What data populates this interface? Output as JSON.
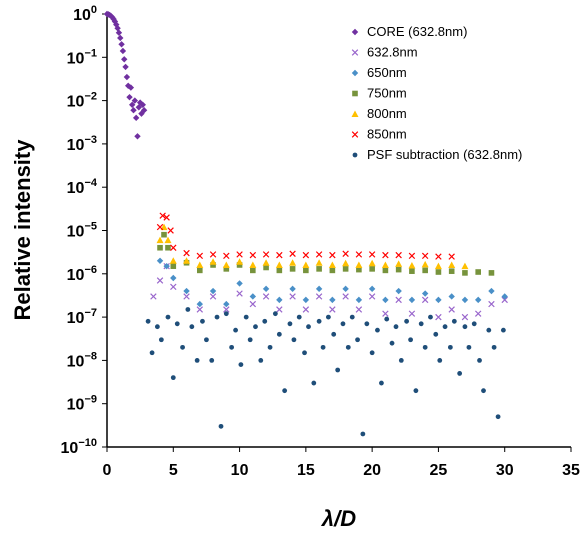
{
  "chart_data": {
    "type": "scatter",
    "title": "",
    "xlabel": "λ/D",
    "ylabel": "Relative intensity",
    "xlim": [
      0,
      35
    ],
    "ylim_log10": [
      -10,
      0
    ],
    "y_scale": "log",
    "grid": false,
    "legend_position": "top-right",
    "x_ticks": [
      "0",
      "5",
      "10",
      "15",
      "20",
      "25",
      "30",
      "35"
    ],
    "y_ticks": [
      "10^0",
      "10^-1",
      "10^-2",
      "10^-3",
      "10^-4",
      "10^-5",
      "10^-6",
      "10^-7",
      "10^-8",
      "10^-9",
      "10^-10"
    ],
    "series": [
      {
        "name": "CORE (632.8nm)",
        "color": "#7030A0",
        "marker": "diamond",
        "x": [
          0.0,
          0.1,
          0.2,
          0.3,
          0.4,
          0.5,
          0.6,
          0.7,
          0.8,
          0.9,
          1.0,
          1.1,
          1.2,
          1.3,
          1.4,
          1.5,
          1.6,
          1.7,
          1.8,
          1.9,
          2.0,
          2.1,
          2.2,
          2.3,
          2.4,
          2.5,
          2.6,
          2.7,
          2.8
        ],
        "y": [
          1.0,
          0.98,
          0.95,
          0.9,
          0.84,
          0.76,
          0.67,
          0.57,
          0.47,
          0.37,
          0.28,
          0.2,
          0.14,
          0.09,
          0.06,
          0.035,
          0.022,
          0.012,
          0.02,
          0.008,
          0.006,
          0.01,
          0.004,
          0.0015,
          0.007,
          0.009,
          0.005,
          0.008,
          0.006
        ]
      },
      {
        "name": "632.8nm",
        "color": "#9966CC",
        "marker": "x",
        "x": [
          3.5,
          4.0,
          4.5,
          5,
          6,
          7,
          8,
          9,
          10,
          11,
          12,
          13,
          14,
          15,
          16,
          17,
          18,
          19,
          20,
          21,
          22,
          23,
          24,
          25,
          26,
          27,
          28,
          29,
          30
        ],
        "y": [
          3e-07,
          7e-07,
          1.5e-06,
          5e-07,
          3e-07,
          1.5e-07,
          3e-07,
          1.5e-07,
          3.5e-07,
          2e-07,
          3e-07,
          1.5e-07,
          3e-07,
          1.5e-07,
          3e-07,
          1.5e-07,
          3e-07,
          1.5e-07,
          3e-07,
          1.2e-07,
          2.5e-07,
          1.2e-07,
          2.5e-07,
          1e-07,
          1.5e-07,
          1e-07,
          1.2e-07,
          2e-07,
          2.5e-07
        ]
      },
      {
        "name": "650nm",
        "color": "#4A90C8",
        "marker": "diamond",
        "x": [
          4,
          4.5,
          5,
          6,
          7,
          8,
          9,
          10,
          11,
          12,
          13,
          14,
          15,
          16,
          17,
          18,
          19,
          20,
          21,
          22,
          23,
          24,
          25,
          26,
          27,
          28,
          29,
          30
        ],
        "y": [
          2e-06,
          1.5e-06,
          8e-07,
          4e-07,
          2e-07,
          4e-07,
          2e-07,
          6e-07,
          3e-07,
          4.5e-07,
          2.5e-07,
          4.5e-07,
          2.5e-07,
          4.5e-07,
          2.5e-07,
          4.5e-07,
          2.5e-07,
          4.5e-07,
          2.5e-07,
          4e-07,
          2.5e-07,
          3.5e-07,
          2.5e-07,
          3e-07,
          2.5e-07,
          2.5e-07,
          4e-07,
          3e-07
        ]
      },
      {
        "name": "750nm",
        "color": "#77933C",
        "marker": "square",
        "x": [
          4,
          4.3,
          4.6,
          5,
          6,
          7,
          8,
          9,
          10,
          11,
          12,
          13,
          14,
          15,
          16,
          17,
          18,
          19,
          20,
          21,
          22,
          23,
          24,
          25,
          26,
          27,
          28,
          29
        ],
        "y": [
          4e-06,
          8e-06,
          4e-06,
          1.5e-06,
          1.8e-06,
          1.2e-06,
          1.6e-06,
          1.3e-06,
          1.6e-06,
          1.2e-06,
          1.4e-06,
          1.2e-06,
          1.3e-06,
          1.2e-06,
          1.3e-06,
          1.2e-06,
          1.3e-06,
          1.25e-06,
          1.3e-06,
          1.2e-06,
          1.25e-06,
          1.15e-06,
          1.2e-06,
          1.1e-06,
          1.15e-06,
          1.05e-06,
          1.1e-06,
          1.05e-06
        ]
      },
      {
        "name": "800nm",
        "color": "#FFC000",
        "marker": "triangle",
        "x": [
          4,
          4.3,
          4.6,
          5,
          6,
          7,
          8,
          9,
          10,
          11,
          12,
          13,
          14,
          15,
          16,
          17,
          18,
          19,
          20,
          21,
          22,
          23,
          24,
          25,
          26,
          27
        ],
        "y": [
          6e-06,
          1.2e-05,
          6e-06,
          2e-06,
          2e-06,
          1.6e-06,
          1.9e-06,
          1.6e-06,
          1.9e-06,
          1.6e-06,
          1.8e-06,
          1.6e-06,
          1.8e-06,
          1.6e-06,
          1.8e-06,
          1.6e-06,
          1.75e-06,
          1.6e-06,
          1.75e-06,
          1.6e-06,
          1.7e-06,
          1.55e-06,
          1.65e-06,
          1.5e-06,
          1.6e-06,
          1.5e-06
        ]
      },
      {
        "name": "850nm",
        "color": "#FF0000",
        "marker": "x",
        "x": [
          4,
          4.2,
          4.5,
          4.8,
          5,
          6,
          7,
          8,
          9,
          10,
          11,
          12,
          13,
          14,
          15,
          16,
          17,
          18,
          19,
          20,
          21,
          22,
          23,
          24,
          25,
          26
        ],
        "y": [
          1.2e-05,
          2.2e-05,
          2e-05,
          1e-05,
          4e-06,
          3e-06,
          2.6e-06,
          2.8e-06,
          2.6e-06,
          2.8e-06,
          2.7e-06,
          2.8e-06,
          2.7e-06,
          2.9e-06,
          2.7e-06,
          2.8e-06,
          2.7e-06,
          2.9e-06,
          2.8e-06,
          2.8e-06,
          2.7e-06,
          2.7e-06,
          2.6e-06,
          2.6e-06,
          2.5e-06,
          2.5e-06
        ]
      },
      {
        "name": "PSF subtraction (632.8nm)",
        "color": "#1F4E79",
        "marker": "circle",
        "x": [
          3.1,
          3.4,
          3.8,
          4.1,
          4.6,
          5.0,
          5.3,
          5.7,
          6.1,
          6.4,
          6.8,
          7.2,
          7.5,
          7.9,
          8.3,
          8.6,
          9.0,
          9.4,
          9.7,
          10.1,
          10.5,
          10.8,
          11.2,
          11.6,
          11.9,
          12.3,
          12.7,
          13.0,
          13.4,
          13.8,
          14.1,
          14.5,
          14.9,
          15.2,
          15.6,
          16.0,
          16.3,
          16.7,
          17.1,
          17.4,
          17.8,
          18.2,
          18.5,
          18.9,
          19.3,
          19.6,
          20.0,
          20.4,
          20.7,
          21.1,
          21.5,
          21.8,
          22.2,
          22.6,
          22.9,
          23.3,
          23.7,
          24.0,
          24.4,
          24.8,
          25.1,
          25.5,
          25.9,
          26.2,
          26.6,
          27.0,
          27.3,
          27.7,
          28.1,
          28.4,
          28.8,
          29.2,
          29.5,
          29.9
        ],
        "y": [
          8e-08,
          1.5e-08,
          6e-08,
          3e-08,
          1e-07,
          4e-09,
          7e-08,
          2e-08,
          1.5e-07,
          6e-08,
          1e-08,
          8e-08,
          3e-08,
          1e-08,
          1e-07,
          3e-10,
          1.2e-07,
          2e-08,
          5e-08,
          8e-09,
          1e-07,
          3e-08,
          6e-08,
          1e-08,
          8e-08,
          2e-08,
          1.2e-07,
          4e-08,
          2e-09,
          7e-08,
          3e-08,
          1e-07,
          1.5e-08,
          6e-08,
          3e-09,
          8e-08,
          2e-08,
          1e-07,
          4e-08,
          6e-09,
          7e-08,
          2e-08,
          1e-07,
          3e-08,
          2e-10,
          7e-08,
          1.5e-08,
          5e-08,
          3e-09,
          9e-08,
          2.5e-08,
          6e-08,
          1e-08,
          8e-08,
          3e-08,
          2e-09,
          7e-08,
          2e-08,
          1e-07,
          4e-08,
          1e-08,
          6e-08,
          2e-08,
          8e-08,
          5e-09,
          6e-08,
          2e-08,
          7e-08,
          1e-08,
          2e-09,
          5e-08,
          2e-08,
          5e-10,
          5e-08
        ]
      }
    ]
  }
}
